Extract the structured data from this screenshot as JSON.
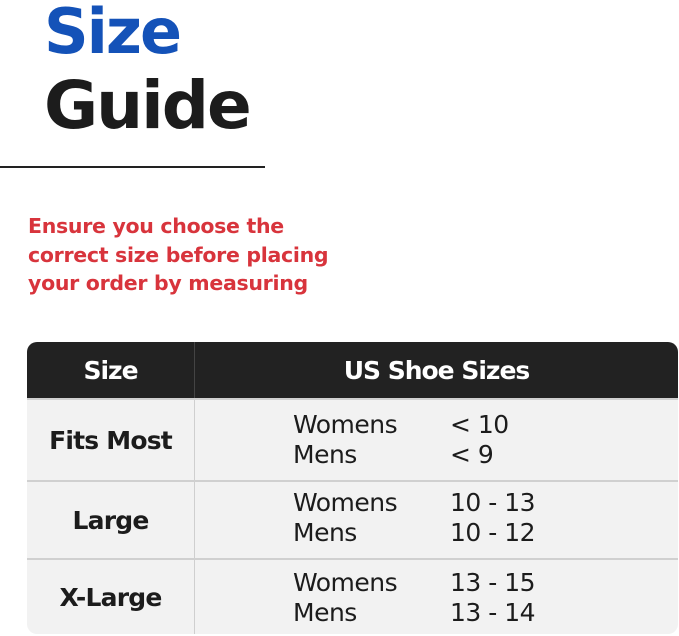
{
  "title": {
    "line1": "Size",
    "line2": "Guide"
  },
  "subtitle": [
    "Ensure you choose the",
    "correct size before placing",
    "your order by measuring"
  ],
  "table": {
    "headers": [
      "Size",
      "US Shoe Sizes"
    ],
    "rows": [
      {
        "size": "Fits Most",
        "entries": [
          {
            "group": "Womens",
            "range": "< 10"
          },
          {
            "group": "Mens",
            "range": "< 9"
          }
        ]
      },
      {
        "size": "Large",
        "entries": [
          {
            "group": "Womens",
            "range": "10 - 13"
          },
          {
            "group": "Mens",
            "range": "10 - 12"
          }
        ]
      },
      {
        "size": "X-Large",
        "entries": [
          {
            "group": "Womens",
            "range": "13 - 15"
          },
          {
            "group": "Mens",
            "range": "13 - 14"
          }
        ]
      }
    ]
  },
  "colors": {
    "title_blue": "#1452b8",
    "subtitle_red": "#d8343c",
    "header_bg": "#222222"
  }
}
